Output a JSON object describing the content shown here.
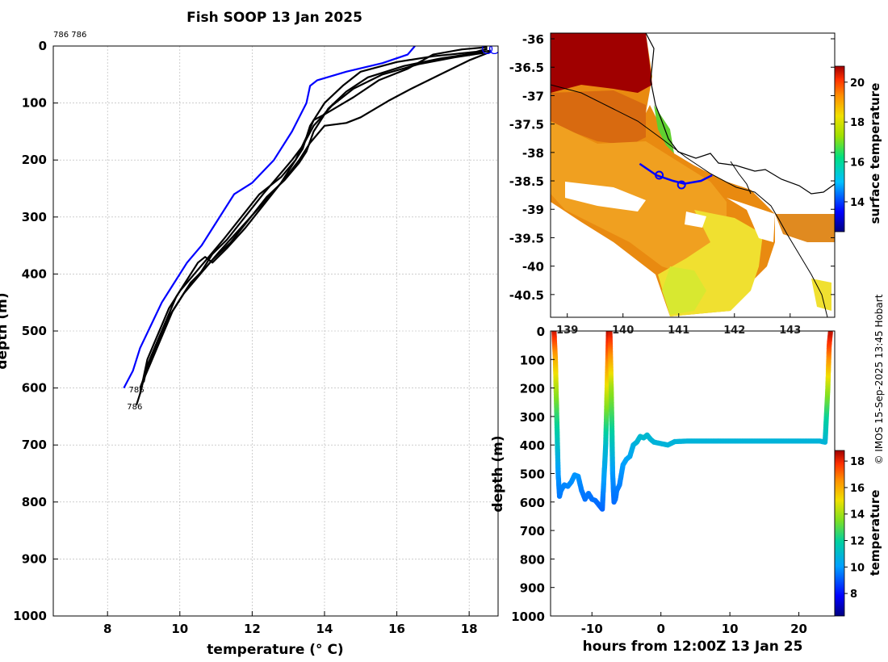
{
  "chart_data": [
    {
      "type": "line",
      "title": "Fish SOOP 13 Jan 2025",
      "xlabel": "temperature (° C)",
      "ylabel": "depth (m)",
      "xlim": [
        6.5,
        18.8
      ],
      "ylim": [
        0,
        1000
      ],
      "y_reversed": true,
      "grid": true,
      "xticks": [
        "8",
        "10",
        "12",
        "14",
        "16",
        "18"
      ],
      "yticks": [
        "0",
        "100",
        "200",
        "300",
        "400",
        "500",
        "600",
        "700",
        "800",
        "900",
        "1000"
      ],
      "top_label": "786 786",
      "annotations": [
        {
          "text": "786",
          "x": 8.9,
          "y": 602
        },
        {
          "text": "786",
          "x": 8.85,
          "y": 632
        }
      ],
      "series": [
        {
          "name": "blue-profile",
          "color": "#0000ff",
          "x": [
            16.5,
            16.3,
            15.6,
            14.6,
            13.8,
            13.6,
            13.5,
            13.1,
            12.6,
            12.0,
            11.5,
            11.0,
            10.6,
            10.2,
            9.8,
            9.5,
            9.2,
            8.9,
            8.7,
            8.45
          ],
          "y": [
            0,
            15,
            30,
            45,
            60,
            70,
            100,
            150,
            200,
            240,
            260,
            310,
            350,
            380,
            420,
            450,
            490,
            530,
            570,
            600
          ]
        },
        {
          "name": "profile-1",
          "color": "#000000",
          "x": [
            18.5,
            18.2,
            17.0,
            16.0,
            15.0,
            14.5,
            14.0,
            13.6,
            13.4,
            13.2,
            12.8,
            12.2,
            11.7,
            11.2,
            10.8,
            10.4,
            10.0,
            9.7,
            9.5,
            9.3,
            9.1,
            9.0,
            8.9,
            8.8
          ],
          "y": [
            5,
            10,
            18,
            28,
            45,
            70,
            100,
            140,
            180,
            200,
            230,
            260,
            300,
            340,
            370,
            400,
            430,
            460,
            490,
            520,
            550,
            580,
            610,
            630
          ]
        },
        {
          "name": "profile-2",
          "color": "#000000",
          "x": [
            18.6,
            18.0,
            17.2,
            16.2,
            15.2,
            14.6,
            14.1,
            13.7,
            13.5,
            13.3,
            12.9,
            12.4,
            11.9,
            11.4,
            10.9,
            10.5,
            10.1,
            9.8,
            9.6,
            9.4,
            9.2,
            9.0,
            8.9
          ],
          "y": [
            8,
            14,
            22,
            35,
            55,
            80,
            110,
            150,
            185,
            205,
            235,
            265,
            305,
            345,
            375,
            405,
            435,
            465,
            495,
            525,
            555,
            585,
            610
          ]
        },
        {
          "name": "profile-3",
          "color": "#000000",
          "x": [
            18.4,
            17.6,
            16.6,
            15.6,
            14.8,
            14.2,
            13.7,
            13.4,
            13.1,
            12.7,
            12.3,
            11.8,
            11.3,
            10.9,
            10.6,
            10.2,
            9.9,
            9.6,
            9.4,
            9.2,
            9.05,
            8.9
          ],
          "y": [
            12,
            20,
            32,
            50,
            75,
            105,
            140,
            175,
            200,
            230,
            260,
            300,
            340,
            365,
            395,
            425,
            455,
            485,
            515,
            545,
            575,
            600
          ]
        },
        {
          "name": "profile-4",
          "color": "#000000",
          "x": [
            18.5,
            17.8,
            17.0,
            16.3,
            15.5,
            14.8,
            14.0,
            13.7,
            13.5,
            13.2,
            12.8,
            12.3,
            11.8,
            11.3,
            10.9,
            10.7,
            10.5,
            10.2,
            9.9,
            9.7,
            9.5,
            9.3,
            9.1,
            9.0
          ],
          "y": [
            2,
            6,
            15,
            40,
            60,
            90,
            120,
            130,
            160,
            200,
            240,
            280,
            320,
            355,
            380,
            370,
            380,
            410,
            440,
            470,
            500,
            530,
            560,
            590
          ]
        },
        {
          "name": "profile-5",
          "color": "#000000",
          "x": [
            18.6,
            18.0,
            17.2,
            16.4,
            15.8,
            15.4,
            15.0,
            14.6,
            14.0,
            13.6,
            13.3,
            13.0,
            12.6,
            12.1,
            11.6,
            11.1,
            10.7,
            10.3,
            10.0,
            9.7,
            9.5,
            9.3,
            9.1,
            8.95
          ],
          "y": [
            10,
            25,
            50,
            75,
            95,
            110,
            125,
            135,
            140,
            170,
            200,
            225,
            255,
            290,
            325,
            360,
            390,
            415,
            445,
            475,
            505,
            535,
            565,
            595
          ]
        }
      ],
      "markers": [
        {
          "shape": "circle",
          "x": 18.5,
          "y": 2,
          "color": "#0000ff"
        },
        {
          "shape": "circle",
          "x": 18.7,
          "y": 2,
          "color": "#0000ff"
        }
      ]
    },
    {
      "type": "heatmap",
      "ylabel": "",
      "xlim": [
        138.7,
        143.8
      ],
      "ylim": [
        -40.9,
        -35.9
      ],
      "yticks": [
        "-36",
        "-36.5",
        "-37",
        "-37.5",
        "-38",
        "-38.5",
        "-39",
        "-39.5",
        "-40",
        "-40.5"
      ],
      "xticks": [
        "139",
        "140",
        "141",
        "142",
        "143"
      ],
      "colorbar_label": "surface temperature",
      "colorbar_range": [
        12.5,
        20.8
      ],
      "colorbar_ticks": [
        "14",
        "16",
        "18",
        "20"
      ],
      "track": {
        "color": "#0000ff",
        "lon": [
          140.3,
          140.6,
          140.9,
          141.1,
          141.4,
          141.6
        ],
        "lat": [
          -38.2,
          -38.4,
          -38.5,
          -38.55,
          -38.5,
          -38.4
        ],
        "markers_lon": [
          140.65,
          141.05
        ],
        "markers_lat": [
          -38.4,
          -38.57
        ]
      }
    },
    {
      "type": "scatter",
      "xlabel": "hours from 12:00Z 13 Jan 25",
      "ylabel": "depth (m)",
      "xlim": [
        -16,
        25.2
      ],
      "ylim": [
        0,
        1000
      ],
      "y_reversed": true,
      "xticks": [
        "-10",
        "0",
        "10",
        "20"
      ],
      "yticks": [
        "0",
        "100",
        "200",
        "300",
        "400",
        "500",
        "600",
        "700",
        "800",
        "900",
        "1000"
      ],
      "colorbar_label": "temperature",
      "colorbar_range": [
        6.3,
        18.8
      ],
      "colorbar_ticks": [
        "8",
        "10",
        "12",
        "14",
        "16",
        "18"
      ],
      "color_by": "temperature",
      "x": [
        -15.5,
        -15.3,
        -15.1,
        -14.9,
        -14.7,
        -14.5,
        -14.0,
        -13.5,
        -13.0,
        -12.5,
        -12.0,
        -11.5,
        -11.0,
        -10.5,
        -10.0,
        -9.5,
        -9.0,
        -8.5,
        -8.0,
        -7.6,
        -7.4,
        -7.2,
        -7.0,
        -6.8,
        -6.6,
        -6.4,
        -6.0,
        -5.5,
        -5.0,
        -4.5,
        -4.0,
        -3.5,
        -3.0,
        -2.5,
        -2.0,
        -1.5,
        -1.0,
        0.0,
        1.0,
        2.0,
        4.0,
        8.0,
        12.0,
        16.0,
        20.0,
        23.0,
        23.8,
        24.0,
        24.2,
        24.4,
        24.6
      ],
      "y": [
        0,
        100,
        300,
        500,
        580,
        560,
        540,
        545,
        530,
        505,
        510,
        560,
        590,
        570,
        590,
        595,
        610,
        625,
        400,
        0,
        0,
        200,
        500,
        600,
        590,
        560,
        540,
        470,
        450,
        440,
        400,
        390,
        370,
        375,
        365,
        380,
        390,
        395,
        400,
        388,
        386,
        386,
        386,
        386,
        386,
        386,
        390,
        300,
        200,
        50,
        0
      ],
      "temperature": [
        18.5,
        16.0,
        12.5,
        10.0,
        9.5,
        9.6,
        9.7,
        9.7,
        9.8,
        9.9,
        9.9,
        9.6,
        9.4,
        9.5,
        9.4,
        9.4,
        9.3,
        9.2,
        11.0,
        18.5,
        18.5,
        14.0,
        10.0,
        9.3,
        9.4,
        9.5,
        9.6,
        10.0,
        10.2,
        10.3,
        10.6,
        10.8,
        11.0,
        11.0,
        11.0,
        10.9,
        10.8,
        10.8,
        10.8,
        10.8,
        10.8,
        10.8,
        10.8,
        10.8,
        10.8,
        10.8,
        10.8,
        12.0,
        14.0,
        17.5,
        18.5
      ]
    }
  ],
  "footer_text": "© IMOS 15-Sep-2025 13:45 Hobart",
  "colors": {
    "profile_blue": "#0000ff",
    "profile_black": "#000000",
    "grid": "#b0b0b0",
    "coast": "#000000",
    "land_gap": "#ffffff"
  }
}
